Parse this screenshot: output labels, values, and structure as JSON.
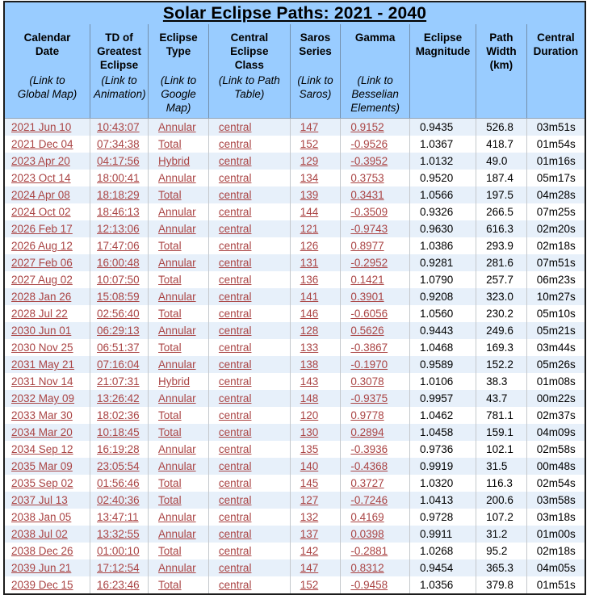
{
  "title": "Solar Eclipse Paths: 2021 - 2040",
  "colors": {
    "header_bg": "#99CCFF",
    "row_alt_bg": "#E7F0FA",
    "row_bg": "#FFFFFF",
    "link_color": "#AA4444",
    "border_color": "#1C1C1C"
  },
  "columns": [
    {
      "key": "calendar-date",
      "label": "Calendar\nDate",
      "sublabel": "(Link to\nGlobal Map)"
    },
    {
      "key": "td-greatest-eclipse",
      "label": "TD of\nGreatest\nEclipse",
      "sublabel": "(Link to\nAnimation)"
    },
    {
      "key": "eclipse-type",
      "label": "Eclipse\nType",
      "sublabel": "(Link to\nGoogle\nMap)"
    },
    {
      "key": "central-eclipse-class",
      "label": "Central\nEclipse\nClass",
      "sublabel": "(Link to Path\nTable)"
    },
    {
      "key": "saros-series",
      "label": "Saros\nSeries",
      "sublabel": "(Link to\nSaros)"
    },
    {
      "key": "gamma",
      "label": "Gamma",
      "sublabel": "(Link to\nBesselian\nElements)"
    },
    {
      "key": "eclipse-magnitude",
      "label": "Eclipse\nMagnitude",
      "sublabel": ""
    },
    {
      "key": "path-width",
      "label": "Path\nWidth\n(km)",
      "sublabel": ""
    },
    {
      "key": "central-duration",
      "label": "Central\nDuration",
      "sublabel": ""
    }
  ],
  "rows": [
    [
      "2021 Jun 10",
      "10:43:07",
      "Annular",
      "central",
      "147",
      "0.9152",
      "0.9435",
      "526.8",
      "03m51s"
    ],
    [
      "2021 Dec 04",
      "07:34:38",
      "Total",
      "central",
      "152",
      "-0.9526",
      "1.0367",
      "418.7",
      "01m54s"
    ],
    [
      "2023 Apr 20",
      "04:17:56",
      "Hybrid",
      "central",
      "129",
      "-0.3952",
      "1.0132",
      "49.0",
      "01m16s"
    ],
    [
      "2023 Oct 14",
      "18:00:41",
      "Annular",
      "central",
      "134",
      "0.3753",
      "0.9520",
      "187.4",
      "05m17s"
    ],
    [
      "2024 Apr 08",
      "18:18:29",
      "Total",
      "central",
      "139",
      "0.3431",
      "1.0566",
      "197.5",
      "04m28s"
    ],
    [
      "2024 Oct 02",
      "18:46:13",
      "Annular",
      "central",
      "144",
      "-0.3509",
      "0.9326",
      "266.5",
      "07m25s"
    ],
    [
      "2026 Feb 17",
      "12:13:06",
      "Annular",
      "central",
      "121",
      "-0.9743",
      "0.9630",
      "616.3",
      "02m20s"
    ],
    [
      "2026 Aug 12",
      "17:47:06",
      "Total",
      "central",
      "126",
      "0.8977",
      "1.0386",
      "293.9",
      "02m18s"
    ],
    [
      "2027 Feb 06",
      "16:00:48",
      "Annular",
      "central",
      "131",
      "-0.2952",
      "0.9281",
      "281.6",
      "07m51s"
    ],
    [
      "2027 Aug 02",
      "10:07:50",
      "Total",
      "central",
      "136",
      "0.1421",
      "1.0790",
      "257.7",
      "06m23s"
    ],
    [
      "2028 Jan 26",
      "15:08:59",
      "Annular",
      "central",
      "141",
      "0.3901",
      "0.9208",
      "323.0",
      "10m27s"
    ],
    [
      "2028 Jul 22",
      "02:56:40",
      "Total",
      "central",
      "146",
      "-0.6056",
      "1.0560",
      "230.2",
      "05m10s"
    ],
    [
      "2030 Jun 01",
      "06:29:13",
      "Annular",
      "central",
      "128",
      "0.5626",
      "0.9443",
      "249.6",
      "05m21s"
    ],
    [
      "2030 Nov 25",
      "06:51:37",
      "Total",
      "central",
      "133",
      "-0.3867",
      "1.0468",
      "169.3",
      "03m44s"
    ],
    [
      "2031 May 21",
      "07:16:04",
      "Annular",
      "central",
      "138",
      "-0.1970",
      "0.9589",
      "152.2",
      "05m26s"
    ],
    [
      "2031 Nov 14",
      "21:07:31",
      "Hybrid",
      "central",
      "143",
      "0.3078",
      "1.0106",
      "38.3",
      "01m08s"
    ],
    [
      "2032 May 09",
      "13:26:42",
      "Annular",
      "central",
      "148",
      "-0.9375",
      "0.9957",
      "43.7",
      "00m22s"
    ],
    [
      "2033 Mar 30",
      "18:02:36",
      "Total",
      "central",
      "120",
      "0.9778",
      "1.0462",
      "781.1",
      "02m37s"
    ],
    [
      "2034 Mar 20",
      "10:18:45",
      "Total",
      "central",
      "130",
      "0.2894",
      "1.0458",
      "159.1",
      "04m09s"
    ],
    [
      "2034 Sep 12",
      "16:19:28",
      "Annular",
      "central",
      "135",
      "-0.3936",
      "0.9736",
      "102.1",
      "02m58s"
    ],
    [
      "2035 Mar 09",
      "23:05:54",
      "Annular",
      "central",
      "140",
      "-0.4368",
      "0.9919",
      "31.5",
      "00m48s"
    ],
    [
      "2035 Sep 02",
      "01:56:46",
      "Total",
      "central",
      "145",
      "0.3727",
      "1.0320",
      "116.3",
      "02m54s"
    ],
    [
      "2037 Jul 13",
      "02:40:36",
      "Total",
      "central",
      "127",
      "-0.7246",
      "1.0413",
      "200.6",
      "03m58s"
    ],
    [
      "2038 Jan 05",
      "13:47:11",
      "Annular",
      "central",
      "132",
      "0.4169",
      "0.9728",
      "107.2",
      "03m18s"
    ],
    [
      "2038 Jul 02",
      "13:32:55",
      "Annular",
      "central",
      "137",
      "0.0398",
      "0.9911",
      "31.2",
      "01m00s"
    ],
    [
      "2038 Dec 26",
      "01:00:10",
      "Total",
      "central",
      "142",
      "-0.2881",
      "1.0268",
      "95.2",
      "02m18s"
    ],
    [
      "2039 Jun 21",
      "17:12:54",
      "Annular",
      "central",
      "147",
      "0.8312",
      "0.9454",
      "365.3",
      "04m05s"
    ],
    [
      "2039 Dec 15",
      "16:23:46",
      "Total",
      "central",
      "152",
      "-0.9458",
      "1.0356",
      "379.8",
      "01m51s"
    ]
  ]
}
